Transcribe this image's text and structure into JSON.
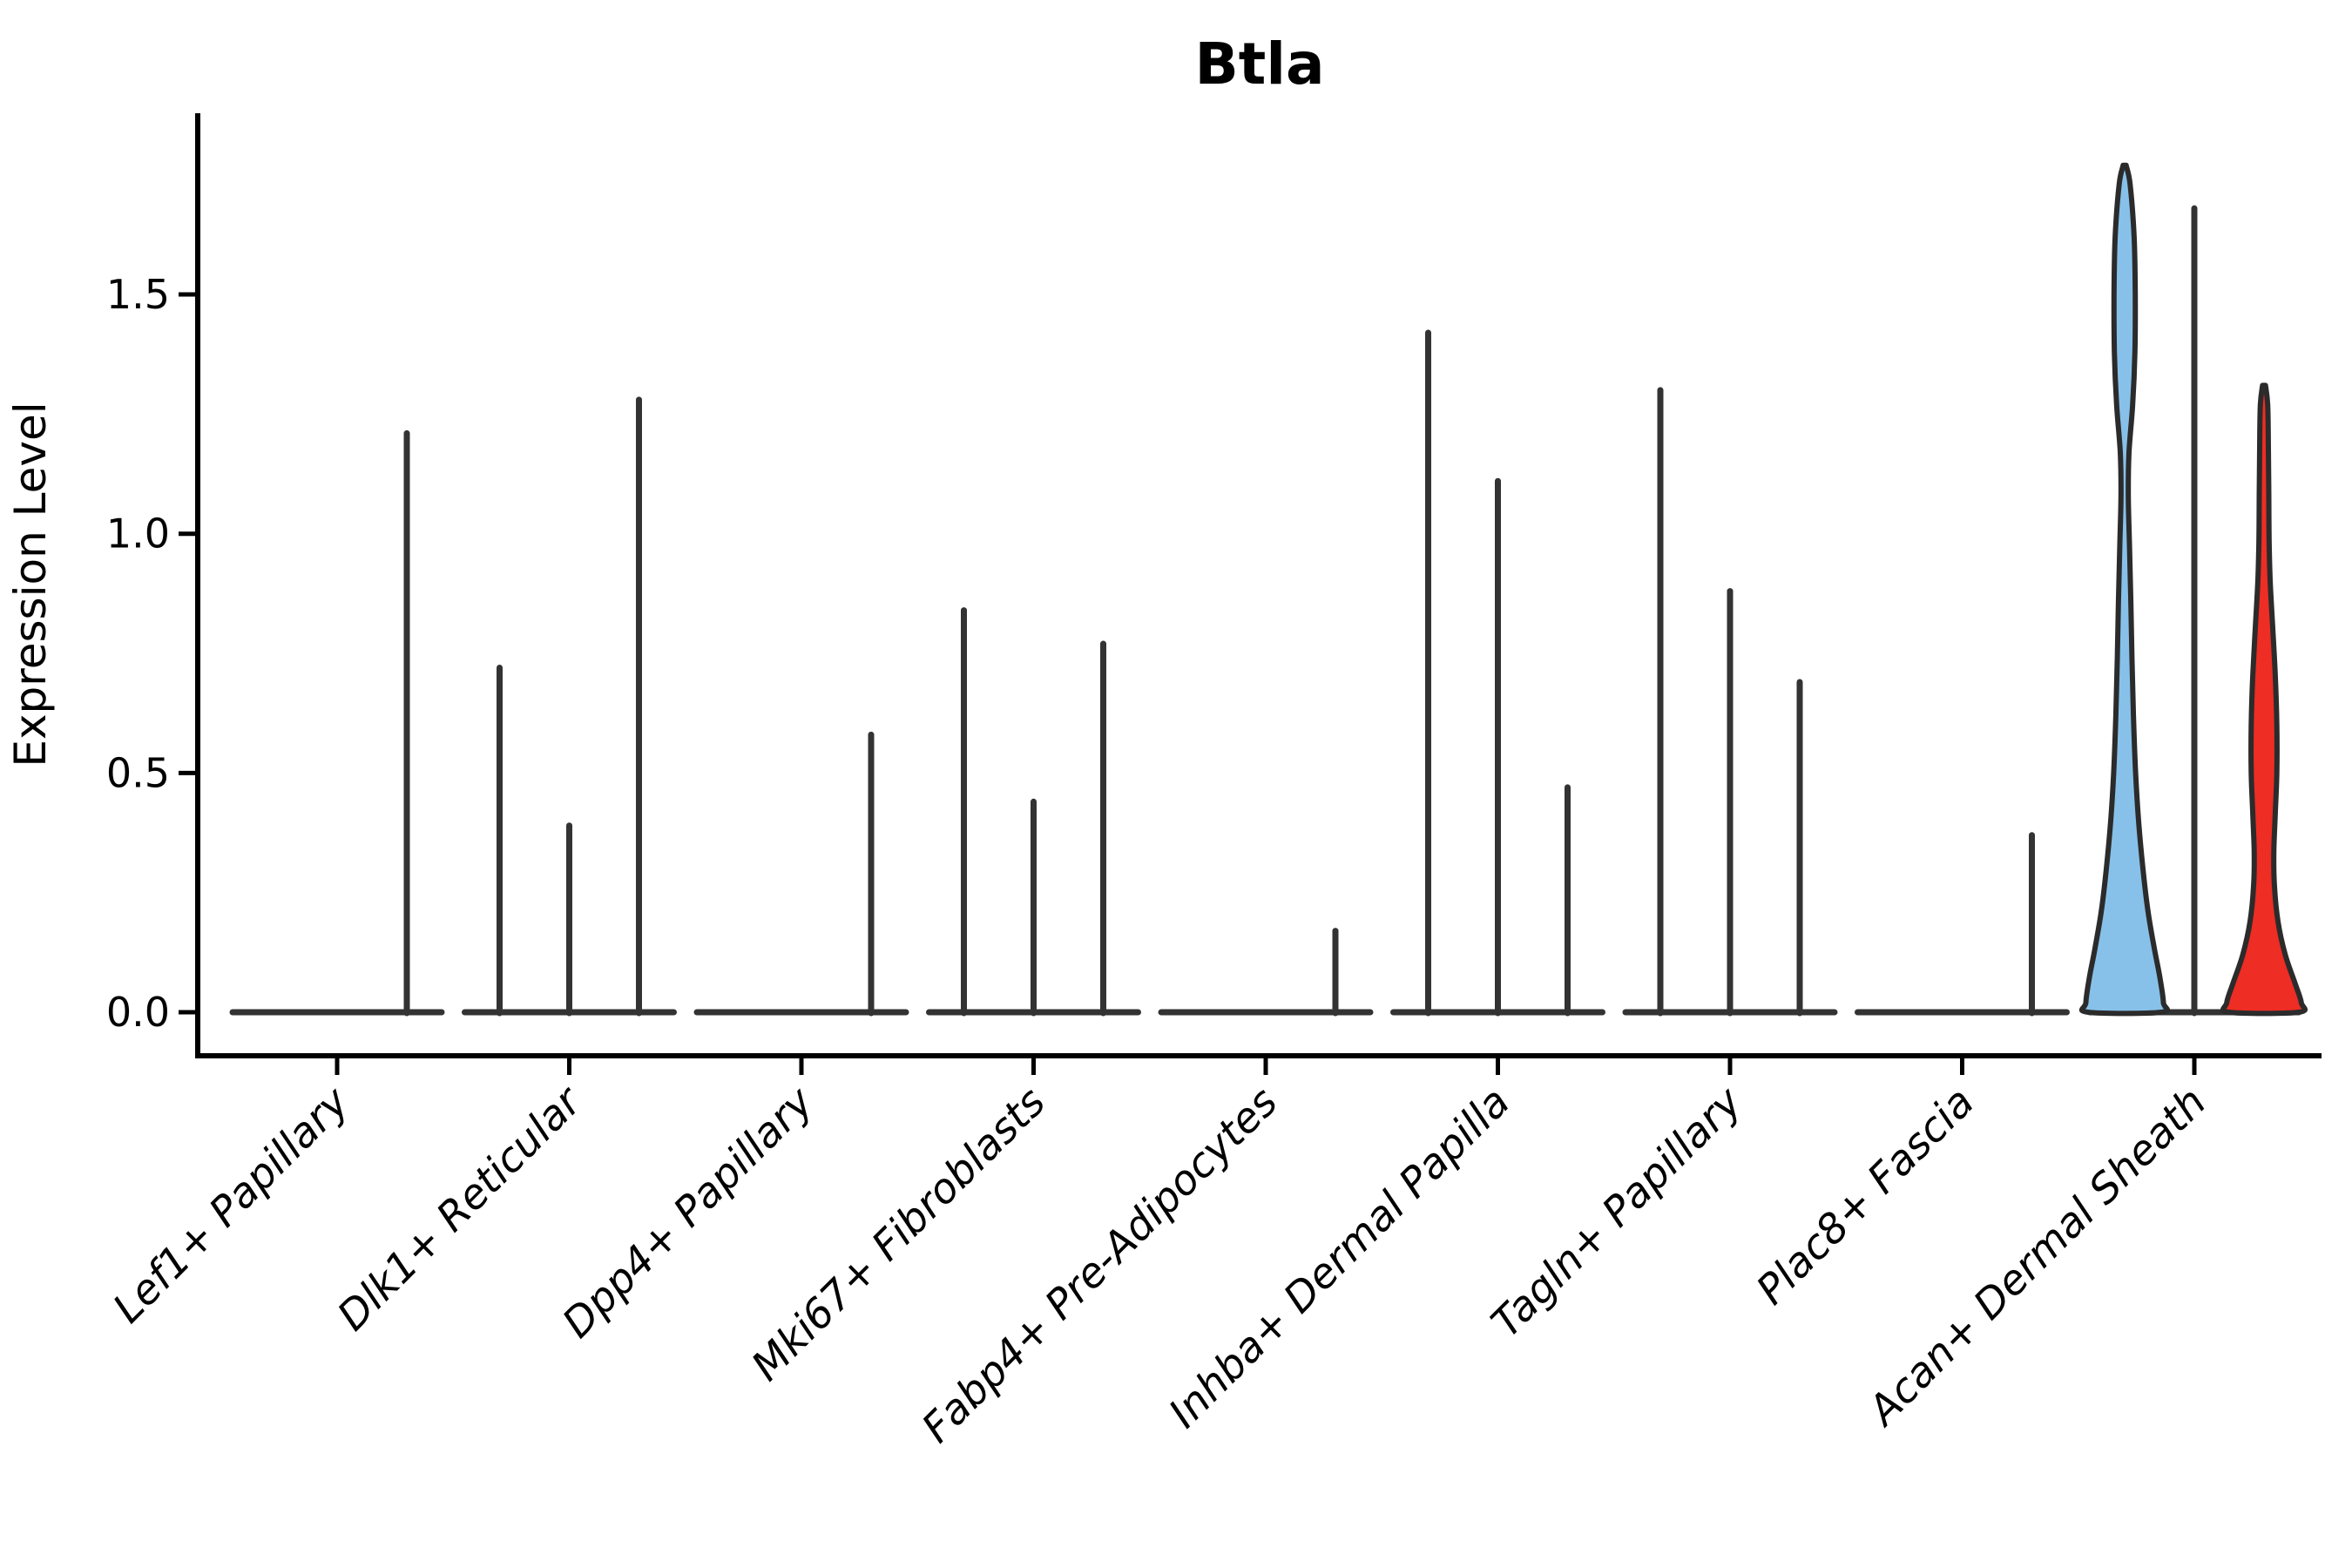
{
  "chart_data": {
    "type": "violin",
    "title": "Btla",
    "ylabel": "Expression Level",
    "xlabel": "",
    "yticks": [
      0.0,
      0.5,
      1.0,
      1.5
    ],
    "ytick_labels": [
      "0.0",
      "0.5",
      "1.0",
      "1.5"
    ],
    "ylim": [
      -0.09,
      1.87
    ],
    "grid": false,
    "legend_position": "none",
    "colors": {
      "blue_violin": "#87C1E9",
      "red_violin": "#EE2D24",
      "spike": "#333333",
      "violin_outline": "#2B2B2B",
      "axis": "#000000"
    },
    "categories": [
      {
        "label": "Lef1+ Papillary",
        "subs": [
          {
            "slot": 2,
            "kind": "spike",
            "value": 1.21
          }
        ]
      },
      {
        "label": "Dlk1+ Reticular",
        "subs": [
          {
            "slot": 0,
            "kind": "spike",
            "value": 0.72
          },
          {
            "slot": 1,
            "kind": "spike",
            "value": 0.39
          },
          {
            "slot": 2,
            "kind": "spike",
            "value": 1.28
          }
        ]
      },
      {
        "label": "Dpp4+ Papillary",
        "subs": [
          {
            "slot": 2,
            "kind": "spike",
            "value": 0.58
          }
        ]
      },
      {
        "label": "Mki67+ Fibroblasts",
        "subs": [
          {
            "slot": 0,
            "kind": "spike",
            "value": 0.84
          },
          {
            "slot": 1,
            "kind": "spike",
            "value": 0.44
          },
          {
            "slot": 2,
            "kind": "spike",
            "value": 0.77
          }
        ]
      },
      {
        "label": "Fabp4+ Pre-Adipocytes",
        "subs": [
          {
            "slot": 2,
            "kind": "spike",
            "value": 0.17
          }
        ]
      },
      {
        "label": "Inhba+ Dermal Papilla",
        "subs": [
          {
            "slot": 0,
            "kind": "spike",
            "value": 1.42
          },
          {
            "slot": 1,
            "kind": "spike",
            "value": 1.11
          },
          {
            "slot": 2,
            "kind": "spike",
            "value": 0.47
          }
        ]
      },
      {
        "label": "Tagln+ Papillary",
        "subs": [
          {
            "slot": 0,
            "kind": "spike",
            "value": 1.3
          },
          {
            "slot": 1,
            "kind": "spike",
            "value": 0.88
          },
          {
            "slot": 2,
            "kind": "spike",
            "value": 0.69
          }
        ]
      },
      {
        "label": "Plac8+ Fascia",
        "subs": [
          {
            "slot": 2,
            "kind": "spike",
            "value": 0.37
          }
        ]
      },
      {
        "label": "Acan+ Dermal Sheath",
        "subs": [
          {
            "slot": 0,
            "kind": "violin",
            "color_key": "blue_violin",
            "value": 1.77,
            "profile": [
              [
                1.77,
                0.04
              ],
              [
                1.73,
                0.15
              ],
              [
                1.62,
                0.26
              ],
              [
                1.5,
                0.29
              ],
              [
                1.38,
                0.28
              ],
              [
                1.27,
                0.22
              ],
              [
                1.17,
                0.12
              ],
              [
                1.08,
                0.1
              ],
              [
                0.98,
                0.13
              ],
              [
                0.86,
                0.17
              ],
              [
                0.74,
                0.2
              ],
              [
                0.62,
                0.24
              ],
              [
                0.5,
                0.3
              ],
              [
                0.4,
                0.38
              ],
              [
                0.3,
                0.5
              ],
              [
                0.21,
                0.64
              ],
              [
                0.13,
                0.82
              ],
              [
                0.07,
                0.97
              ],
              [
                0.02,
                1.06
              ],
              [
                0.0,
                1.0
              ]
            ]
          },
          {
            "slot": 1,
            "kind": "spike",
            "value": 1.68
          },
          {
            "slot": 2,
            "kind": "violin",
            "color_key": "red_violin",
            "value": 1.31,
            "profile": [
              [
                1.31,
                0.04
              ],
              [
                1.27,
                0.1
              ],
              [
                1.18,
                0.12
              ],
              [
                1.08,
                0.13
              ],
              [
                0.98,
                0.14
              ],
              [
                0.9,
                0.17
              ],
              [
                0.8,
                0.24
              ],
              [
                0.7,
                0.31
              ],
              [
                0.6,
                0.35
              ],
              [
                0.5,
                0.35
              ],
              [
                0.42,
                0.31
              ],
              [
                0.34,
                0.27
              ],
              [
                0.27,
                0.28
              ],
              [
                0.19,
                0.38
              ],
              [
                0.12,
                0.58
              ],
              [
                0.06,
                0.85
              ],
              [
                0.02,
                1.02
              ],
              [
                0.0,
                0.95
              ]
            ]
          }
        ]
      }
    ]
  }
}
